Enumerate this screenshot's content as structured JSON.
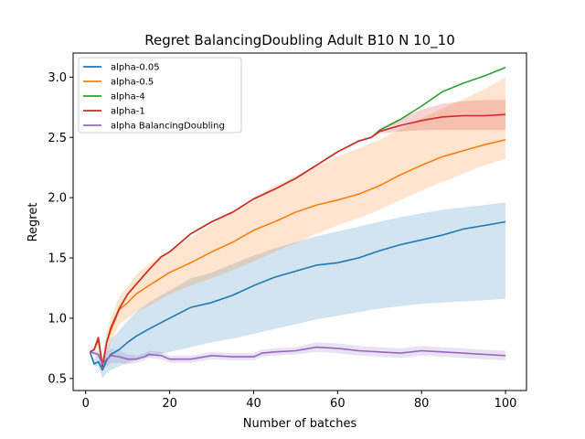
{
  "chart_data": {
    "type": "line",
    "title": "Regret BalancingDoubling Adult B10 N 10_10",
    "xlabel": "Number of batches",
    "ylabel": "Regret",
    "xlim": [
      -3,
      105
    ],
    "ylim": [
      0.4,
      3.2
    ],
    "xticks": [
      0,
      20,
      40,
      60,
      80,
      100
    ],
    "yticks": [
      0.5,
      1.0,
      1.5,
      2.0,
      2.5,
      3.0
    ],
    "xtick_labels": [
      "0",
      "20",
      "40",
      "60",
      "80",
      "100"
    ],
    "ytick_labels": [
      "0.5",
      "1.0",
      "1.5",
      "2.0",
      "2.5",
      "3.0"
    ],
    "grid": false,
    "legend_position": "top-left",
    "series": [
      {
        "name": "alpha-0.05",
        "color": "#1f77b4",
        "x": [
          1,
          2,
          3,
          4,
          5,
          6,
          8,
          10,
          12,
          15,
          20,
          25,
          30,
          35,
          40,
          45,
          50,
          55,
          60,
          65,
          70,
          75,
          80,
          85,
          90,
          95,
          100
        ],
        "y": [
          0.72,
          0.62,
          0.64,
          0.57,
          0.65,
          0.7,
          0.74,
          0.8,
          0.85,
          0.91,
          1.0,
          1.09,
          1.13,
          1.19,
          1.27,
          1.34,
          1.39,
          1.44,
          1.46,
          1.5,
          1.56,
          1.61,
          1.65,
          1.69,
          1.74,
          1.77,
          1.8
        ],
        "band_low": [
          0.72,
          0.6,
          0.6,
          0.5,
          0.55,
          0.57,
          0.6,
          0.63,
          0.66,
          0.68,
          0.72,
          0.76,
          0.8,
          0.83,
          0.87,
          0.91,
          0.95,
          0.99,
          1.02,
          1.05,
          1.08,
          1.1,
          1.12,
          1.13,
          1.14,
          1.15,
          1.16
        ],
        "band_high": [
          0.72,
          0.66,
          0.7,
          0.65,
          0.75,
          0.82,
          0.9,
          0.98,
          1.05,
          1.13,
          1.23,
          1.33,
          1.38,
          1.45,
          1.52,
          1.58,
          1.63,
          1.68,
          1.72,
          1.76,
          1.8,
          1.84,
          1.87,
          1.9,
          1.92,
          1.94,
          1.96
        ]
      },
      {
        "name": "alpha-0.5",
        "color": "#ff7f0e",
        "x": [
          1,
          2,
          3,
          4,
          5,
          6,
          8,
          10,
          12,
          15,
          20,
          25,
          30,
          35,
          40,
          45,
          50,
          55,
          60,
          65,
          70,
          75,
          80,
          85,
          90,
          95,
          100
        ],
        "y": [
          0.72,
          0.74,
          0.82,
          0.6,
          0.8,
          0.9,
          1.07,
          1.13,
          1.2,
          1.27,
          1.38,
          1.46,
          1.55,
          1.63,
          1.73,
          1.8,
          1.88,
          1.94,
          1.98,
          2.03,
          2.1,
          2.19,
          2.27,
          2.34,
          2.39,
          2.44,
          2.48
        ],
        "band_low": [
          0.72,
          0.72,
          0.78,
          0.55,
          0.72,
          0.8,
          0.95,
          1.0,
          1.05,
          1.1,
          1.2,
          1.27,
          1.33,
          1.4,
          1.47,
          1.55,
          1.62,
          1.7,
          1.77,
          1.83,
          1.9,
          1.98,
          2.06,
          2.13,
          2.2,
          2.27,
          2.32
        ],
        "band_high": [
          0.72,
          0.76,
          0.86,
          0.66,
          0.88,
          1.0,
          1.18,
          1.26,
          1.36,
          1.45,
          1.56,
          1.67,
          1.78,
          1.88,
          2.0,
          2.1,
          2.18,
          2.26,
          2.34,
          2.41,
          2.48,
          2.57,
          2.66,
          2.74,
          2.82,
          2.9,
          3.0
        ]
      },
      {
        "name": "alpha-4",
        "color": "#2ca02c",
        "x": [
          1,
          2,
          3,
          4,
          5,
          6,
          8,
          10,
          12,
          15,
          18,
          20,
          25,
          30,
          35,
          40,
          45,
          50,
          55,
          60,
          65,
          68,
          70,
          75,
          80,
          85,
          90,
          95,
          100
        ],
        "y": [
          0.72,
          0.74,
          0.83,
          0.6,
          0.8,
          0.92,
          1.08,
          1.2,
          1.28,
          1.4,
          1.51,
          1.55,
          1.7,
          1.8,
          1.88,
          1.99,
          2.07,
          2.16,
          2.27,
          2.38,
          2.47,
          2.5,
          2.56,
          2.65,
          2.76,
          2.88,
          2.95,
          3.01,
          3.08
        ]
      },
      {
        "name": "alpha-1",
        "color": "#d62728",
        "x": [
          1,
          2,
          3,
          4,
          5,
          6,
          8,
          10,
          12,
          15,
          18,
          20,
          25,
          30,
          35,
          40,
          45,
          50,
          55,
          60,
          65,
          68,
          70,
          75,
          80,
          85,
          90,
          95,
          100
        ],
        "y": [
          0.72,
          0.74,
          0.84,
          0.6,
          0.8,
          0.92,
          1.08,
          1.2,
          1.28,
          1.4,
          1.51,
          1.55,
          1.7,
          1.8,
          1.88,
          1.99,
          2.07,
          2.16,
          2.27,
          2.38,
          2.47,
          2.5,
          2.55,
          2.6,
          2.64,
          2.67,
          2.68,
          2.68,
          2.69
        ],
        "band_low": [
          0.72,
          0.74,
          0.84,
          0.6,
          0.8,
          0.92,
          1.08,
          1.2,
          1.28,
          1.4,
          1.51,
          1.55,
          1.7,
          1.8,
          1.88,
          1.99,
          2.07,
          2.16,
          2.27,
          2.38,
          2.47,
          2.5,
          2.53,
          2.55,
          2.56,
          2.56,
          2.56,
          2.56,
          2.56
        ],
        "band_high": [
          0.72,
          0.74,
          0.84,
          0.6,
          0.8,
          0.92,
          1.08,
          1.2,
          1.28,
          1.4,
          1.51,
          1.55,
          1.7,
          1.8,
          1.88,
          1.99,
          2.07,
          2.16,
          2.27,
          2.38,
          2.47,
          2.5,
          2.57,
          2.66,
          2.73,
          2.78,
          2.8,
          2.81,
          2.81
        ]
      },
      {
        "name": "alpha BalancingDoubling",
        "color": "#9467bd",
        "x": [
          1,
          2,
          3,
          4,
          5,
          6,
          8,
          10,
          12,
          14,
          15,
          18,
          20,
          25,
          30,
          35,
          40,
          42,
          45,
          50,
          55,
          60,
          65,
          70,
          75,
          80,
          85,
          90,
          95,
          100
        ],
        "y": [
          0.72,
          0.71,
          0.7,
          0.62,
          0.66,
          0.69,
          0.68,
          0.66,
          0.66,
          0.68,
          0.7,
          0.69,
          0.66,
          0.66,
          0.69,
          0.68,
          0.68,
          0.71,
          0.72,
          0.73,
          0.76,
          0.75,
          0.73,
          0.72,
          0.71,
          0.73,
          0.72,
          0.71,
          0.7,
          0.69
        ],
        "band_low": [
          0.72,
          0.69,
          0.67,
          0.57,
          0.6,
          0.63,
          0.63,
          0.62,
          0.63,
          0.65,
          0.67,
          0.66,
          0.63,
          0.63,
          0.66,
          0.65,
          0.65,
          0.68,
          0.69,
          0.7,
          0.72,
          0.71,
          0.69,
          0.68,
          0.67,
          0.69,
          0.68,
          0.67,
          0.66,
          0.65
        ],
        "band_high": [
          0.72,
          0.73,
          0.73,
          0.67,
          0.72,
          0.75,
          0.73,
          0.7,
          0.69,
          0.71,
          0.73,
          0.72,
          0.69,
          0.69,
          0.72,
          0.71,
          0.71,
          0.74,
          0.75,
          0.76,
          0.8,
          0.79,
          0.77,
          0.76,
          0.75,
          0.77,
          0.76,
          0.75,
          0.74,
          0.73
        ]
      }
    ]
  }
}
